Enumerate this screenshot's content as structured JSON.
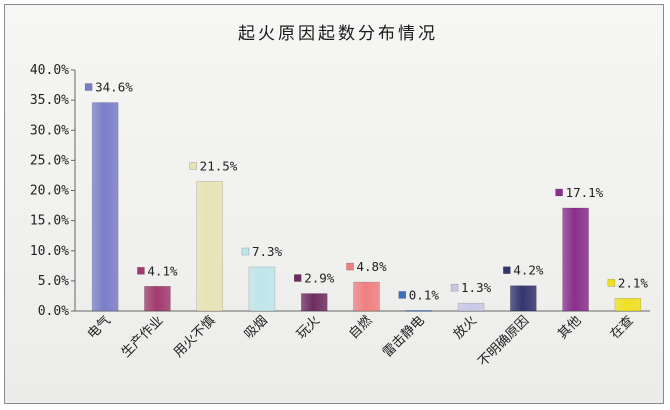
{
  "chart_data": {
    "type": "bar",
    "title": "起火原因起数分布情况",
    "categories": [
      "电气",
      "生产作业",
      "用火不慎",
      "吸烟",
      "玩火",
      "自燃",
      "雷击静电",
      "放火",
      "不明确原因",
      "其他",
      "在查"
    ],
    "values": [
      34.6,
      4.1,
      21.5,
      7.3,
      2.9,
      4.8,
      0.1,
      1.3,
      4.2,
      17.1,
      2.1
    ],
    "data_labels": [
      "34.6%",
      "4.1%",
      "21.5%",
      "7.3%",
      "2.9%",
      "4.8%",
      "0.1%",
      "1.3%",
      "4.2%",
      "17.1%",
      "2.1%"
    ],
    "colors": [
      "#7b7ec8",
      "#a23a6e",
      "#e6e3b4",
      "#bfe6ea",
      "#6e2c60",
      "#ee8080",
      "#3a6fc0",
      "#c8c8e8",
      "#33356e",
      "#8a2f8c",
      "#f0e020"
    ],
    "ylim": [
      0,
      40
    ],
    "yticks": [
      "0.0%",
      "5.0%",
      "10.0%",
      "15.0%",
      "20.0%",
      "25.0%",
      "30.0%",
      "35.0%",
      "40.0%"
    ],
    "grid": false,
    "legend": "none"
  }
}
